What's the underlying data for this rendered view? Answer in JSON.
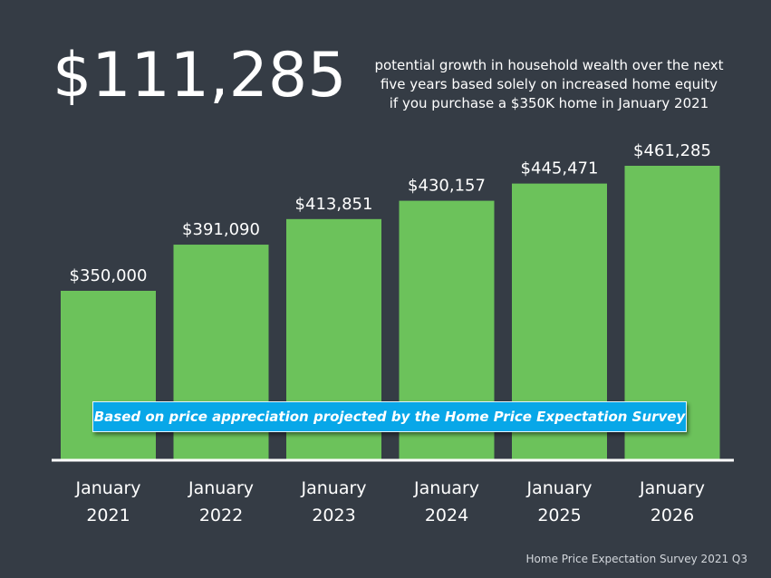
{
  "headline": {
    "amount": "$111,285",
    "line1": "potential growth in household wealth over the next",
    "line2": "five years based solely on increased home equity",
    "line3": "if you purchase a $350K home in January 2021"
  },
  "note": "Based on price appreciation projected by the Home Price Expectation Survey",
  "source": "Home Price Expectation Survey 2021 Q3",
  "colors": {
    "background": "#353c45",
    "bar": "#6cc25b",
    "note_box": "#08a7e8",
    "text": "#ffffff"
  },
  "chart_data": {
    "type": "bar",
    "categories": [
      [
        "January",
        "2021"
      ],
      [
        "January",
        "2022"
      ],
      [
        "January",
        "2023"
      ],
      [
        "January",
        "2024"
      ],
      [
        "January",
        "2025"
      ],
      [
        "January",
        "2026"
      ]
    ],
    "values": [
      350000,
      391090,
      413851,
      430157,
      445471,
      461285
    ],
    "data_labels": [
      "$350,000",
      "$391,090",
      "$413,851",
      "$430,157",
      "$445,471",
      "$461,285"
    ],
    "title": "",
    "xlabel": "",
    "ylabel": "",
    "ylim": [
      0,
      461285
    ],
    "grid": false,
    "legend": "none"
  }
}
